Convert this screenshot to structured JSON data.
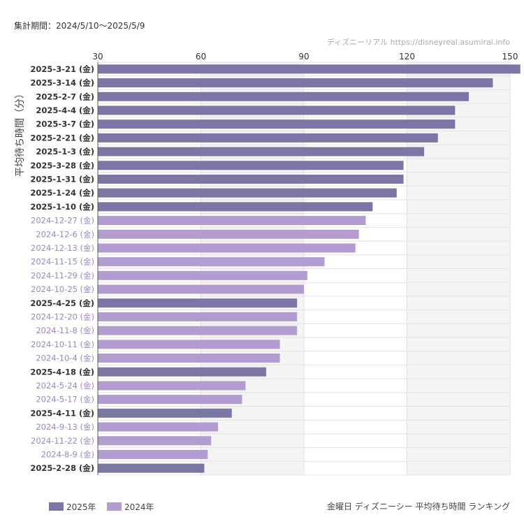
{
  "header": {
    "period": "集計期間：2024/5/10〜2025/5/9",
    "source": "ディズニーリアル https://disneyreal.asumirai.info"
  },
  "footer": {
    "caption": "金曜日 ディズニーシー 平均待ち時間 ランキング"
  },
  "colors": {
    "series_2025": "#7b76a3",
    "series_2024": "#b39ccf",
    "label_2024": "#9c86bf",
    "label_2025": "#333333",
    "band": "#f4f4f4",
    "grid": "#e2e2e2"
  },
  "chart_data": {
    "type": "bar",
    "orientation": "horizontal",
    "ylabel": "平均待ち時間（分）",
    "xlim": [
      30,
      150
    ],
    "xticks": [
      30,
      60,
      90,
      120,
      150
    ],
    "grid": true,
    "legend_position": "bottom-left",
    "series": [
      {
        "name": "2025年"
      },
      {
        "name": "2024年"
      }
    ],
    "bars": [
      {
        "label": "2025-3-21 (金)",
        "value": 153,
        "series": "2025年"
      },
      {
        "label": "2025-3-14 (金)",
        "value": 145,
        "series": "2025年"
      },
      {
        "label": "2025-2-7 (金)",
        "value": 138,
        "series": "2025年"
      },
      {
        "label": "2025-4-4 (金)",
        "value": 134,
        "series": "2025年"
      },
      {
        "label": "2025-3-7 (金)",
        "value": 134,
        "series": "2025年"
      },
      {
        "label": "2025-2-21 (金)",
        "value": 129,
        "series": "2025年"
      },
      {
        "label": "2025-1-3 (金)",
        "value": 125,
        "series": "2025年"
      },
      {
        "label": "2025-3-28 (金)",
        "value": 119,
        "series": "2025年"
      },
      {
        "label": "2025-1-31 (金)",
        "value": 119,
        "series": "2025年"
      },
      {
        "label": "2025-1-24 (金)",
        "value": 117,
        "series": "2025年"
      },
      {
        "label": "2025-1-10 (金)",
        "value": 110,
        "series": "2025年"
      },
      {
        "label": "2024-12-27 (金)",
        "value": 108,
        "series": "2024年"
      },
      {
        "label": "2024-12-6 (金)",
        "value": 106,
        "series": "2024年"
      },
      {
        "label": "2024-12-13 (金)",
        "value": 105,
        "series": "2024年"
      },
      {
        "label": "2024-11-15 (金)",
        "value": 96,
        "series": "2024年"
      },
      {
        "label": "2024-11-29 (金)",
        "value": 91,
        "series": "2024年"
      },
      {
        "label": "2024-10-25 (金)",
        "value": 90,
        "series": "2024年"
      },
      {
        "label": "2025-4-25 (金)",
        "value": 88,
        "series": "2025年"
      },
      {
        "label": "2024-12-20 (金)",
        "value": 88,
        "series": "2024年"
      },
      {
        "label": "2024-11-8 (金)",
        "value": 88,
        "series": "2024年"
      },
      {
        "label": "2024-10-11 (金)",
        "value": 83,
        "series": "2024年"
      },
      {
        "label": "2024-10-4 (金)",
        "value": 83,
        "series": "2024年"
      },
      {
        "label": "2025-4-18 (金)",
        "value": 79,
        "series": "2025年"
      },
      {
        "label": "2024-5-24 (金)",
        "value": 73,
        "series": "2024年"
      },
      {
        "label": "2024-5-17 (金)",
        "value": 72,
        "series": "2024年"
      },
      {
        "label": "2025-4-11 (金)",
        "value": 69,
        "series": "2025年"
      },
      {
        "label": "2024-9-13 (金)",
        "value": 65,
        "series": "2024年"
      },
      {
        "label": "2024-11-22 (金)",
        "value": 63,
        "series": "2024年"
      },
      {
        "label": "2024-8-9 (金)",
        "value": 62,
        "series": "2024年"
      },
      {
        "label": "2025-2-28 (金)",
        "value": 61,
        "series": "2025年"
      }
    ]
  }
}
